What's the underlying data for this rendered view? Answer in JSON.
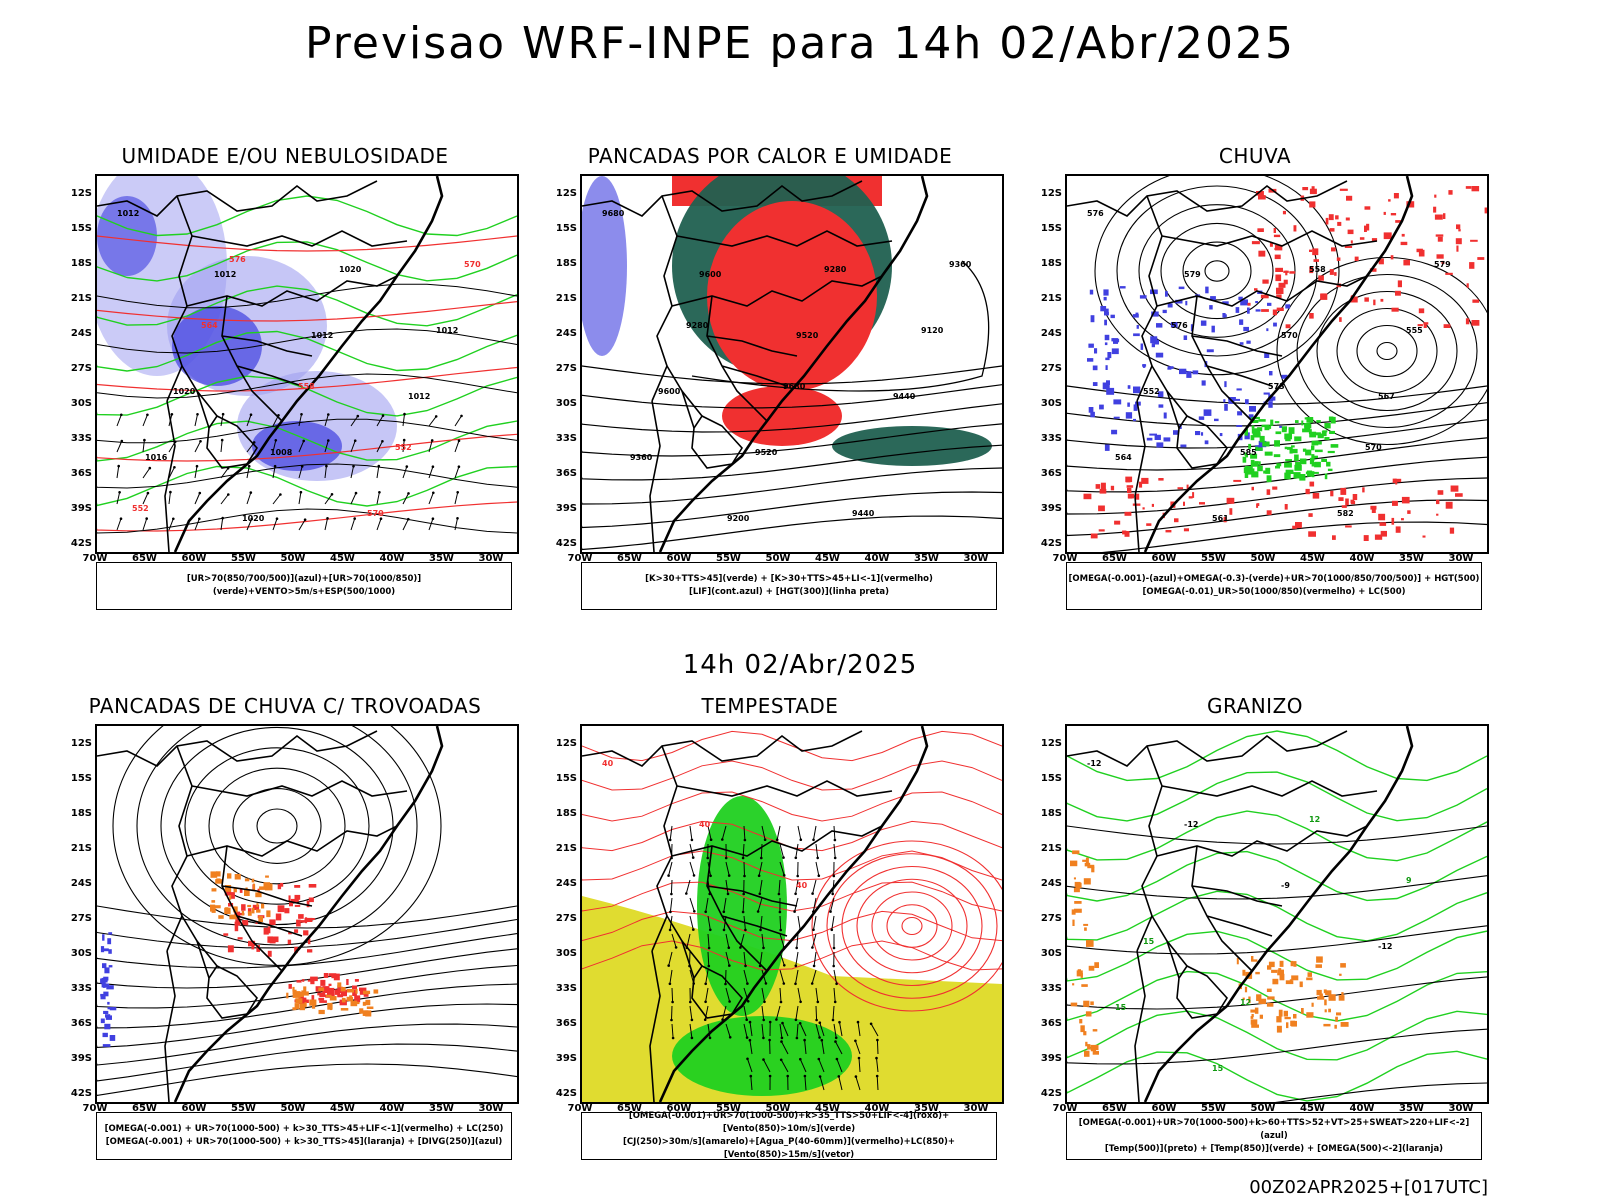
{
  "header": {
    "title": "Previsao WRF-INPE  para 14h 02/Abr/2025"
  },
  "mid": {
    "title": "14h 02/Abr/2025"
  },
  "footer": {
    "stamp": "00Z02APR2025+[017UTC]"
  },
  "axes": {
    "lat": [
      "12S",
      "15S",
      "18S",
      "21S",
      "24S",
      "27S",
      "30S",
      "33S",
      "36S",
      "39S",
      "42S"
    ],
    "lon": [
      "70W",
      "65W",
      "60W",
      "55W",
      "50W",
      "45W",
      "40W",
      "35W",
      "30W"
    ]
  },
  "colors": {
    "blue": "#4040e0",
    "lightblue": "#a0a0f0",
    "green": "#20d020",
    "red": "#f03030",
    "darkgreen": "#206050",
    "yellow": "#e0dc30",
    "orange": "#f08020"
  },
  "panels": [
    {
      "title": "UMIDADE E/OU NEBULOSIDADE",
      "legend": [
        "[UR>70(850/700/500)](azul)+[UR>70(1000/850)](verde)+VENTO>5m/s+ESP(500/1000)"
      ],
      "labels": [
        "1012",
        "1012",
        "1012",
        "1012",
        "1016",
        "1020",
        "1020",
        "1012",
        "1020",
        "1008",
        "570",
        "570",
        "564",
        "558",
        "552",
        "552",
        "576"
      ]
    },
    {
      "title": "PANCADAS POR CALOR E UMIDADE",
      "legend": [
        "[K>30+TTS>45](verde) + [K>30+TTS>45+LI<-1](vermelho)",
        "[LIF](cont.azul) + [HGT(300)](linha preta)"
      ],
      "labels": [
        "9680",
        "9600",
        "9520",
        "9440",
        "9360",
        "9200",
        "9280",
        "9120",
        "9600",
        "9520",
        "9440",
        "9360",
        "9280",
        "9680"
      ]
    },
    {
      "title": "CHUVA",
      "legend": [
        "[OMEGA(-0.001)-(azul)+OMEGA(-0.3)-(verde)+UR>70(1000/850/700/500)] + HGT(500)",
        "[OMEGA(-0.01)_UR>50(1000/850)(vermelho) + LC(500)"
      ],
      "labels": [
        "576",
        "579",
        "570",
        "567",
        "564",
        "561",
        "558",
        "555",
        "552",
        "585",
        "582",
        "579",
        "576",
        "573",
        "570"
      ]
    },
    {
      "title": "PANCADAS DE CHUVA C/ TROVOADAS",
      "legend": [
        "[OMEGA(-0.001) + UR>70(1000-500) + k>30_TTS>45+LIF<-1](vermelho) + LC(250)",
        "[OMEGA(-0.001) + UR>70(1000-500) + k>30_TTS>45](laranja) + [DIVG(250)](azul)"
      ],
      "labels": []
    },
    {
      "title": "TEMPESTADE",
      "legend": [
        "[OMEGA(-0.001)+UR>70(1000-500)+k>35_TTS>50+LIF<-4](roxo)+[Vento(850)>10m/s](verde)",
        "[CJ(250)>30m/s](amarelo)+[Agua_P(40-60mm)](vermelho)+LC(850)+[Vento(850)>15m/s](vetor)"
      ],
      "labels": [
        "40",
        "40",
        "40"
      ]
    },
    {
      "title": "GRANIZO",
      "legend": [
        "[OMEGA(-0.001)+UR>70(1000-500)+k>60+TTS>52+VT>25+SWEAT>220+LIF<-2](azul)",
        "[Temp(500)](preto) + [Temp(850)](verde) + [OMEGA(500)<-2](laranja)"
      ],
      "labels": [
        "-12",
        "-12",
        "-9",
        "-12",
        "15",
        "15",
        "12",
        "9",
        "15",
        "12"
      ]
    }
  ]
}
